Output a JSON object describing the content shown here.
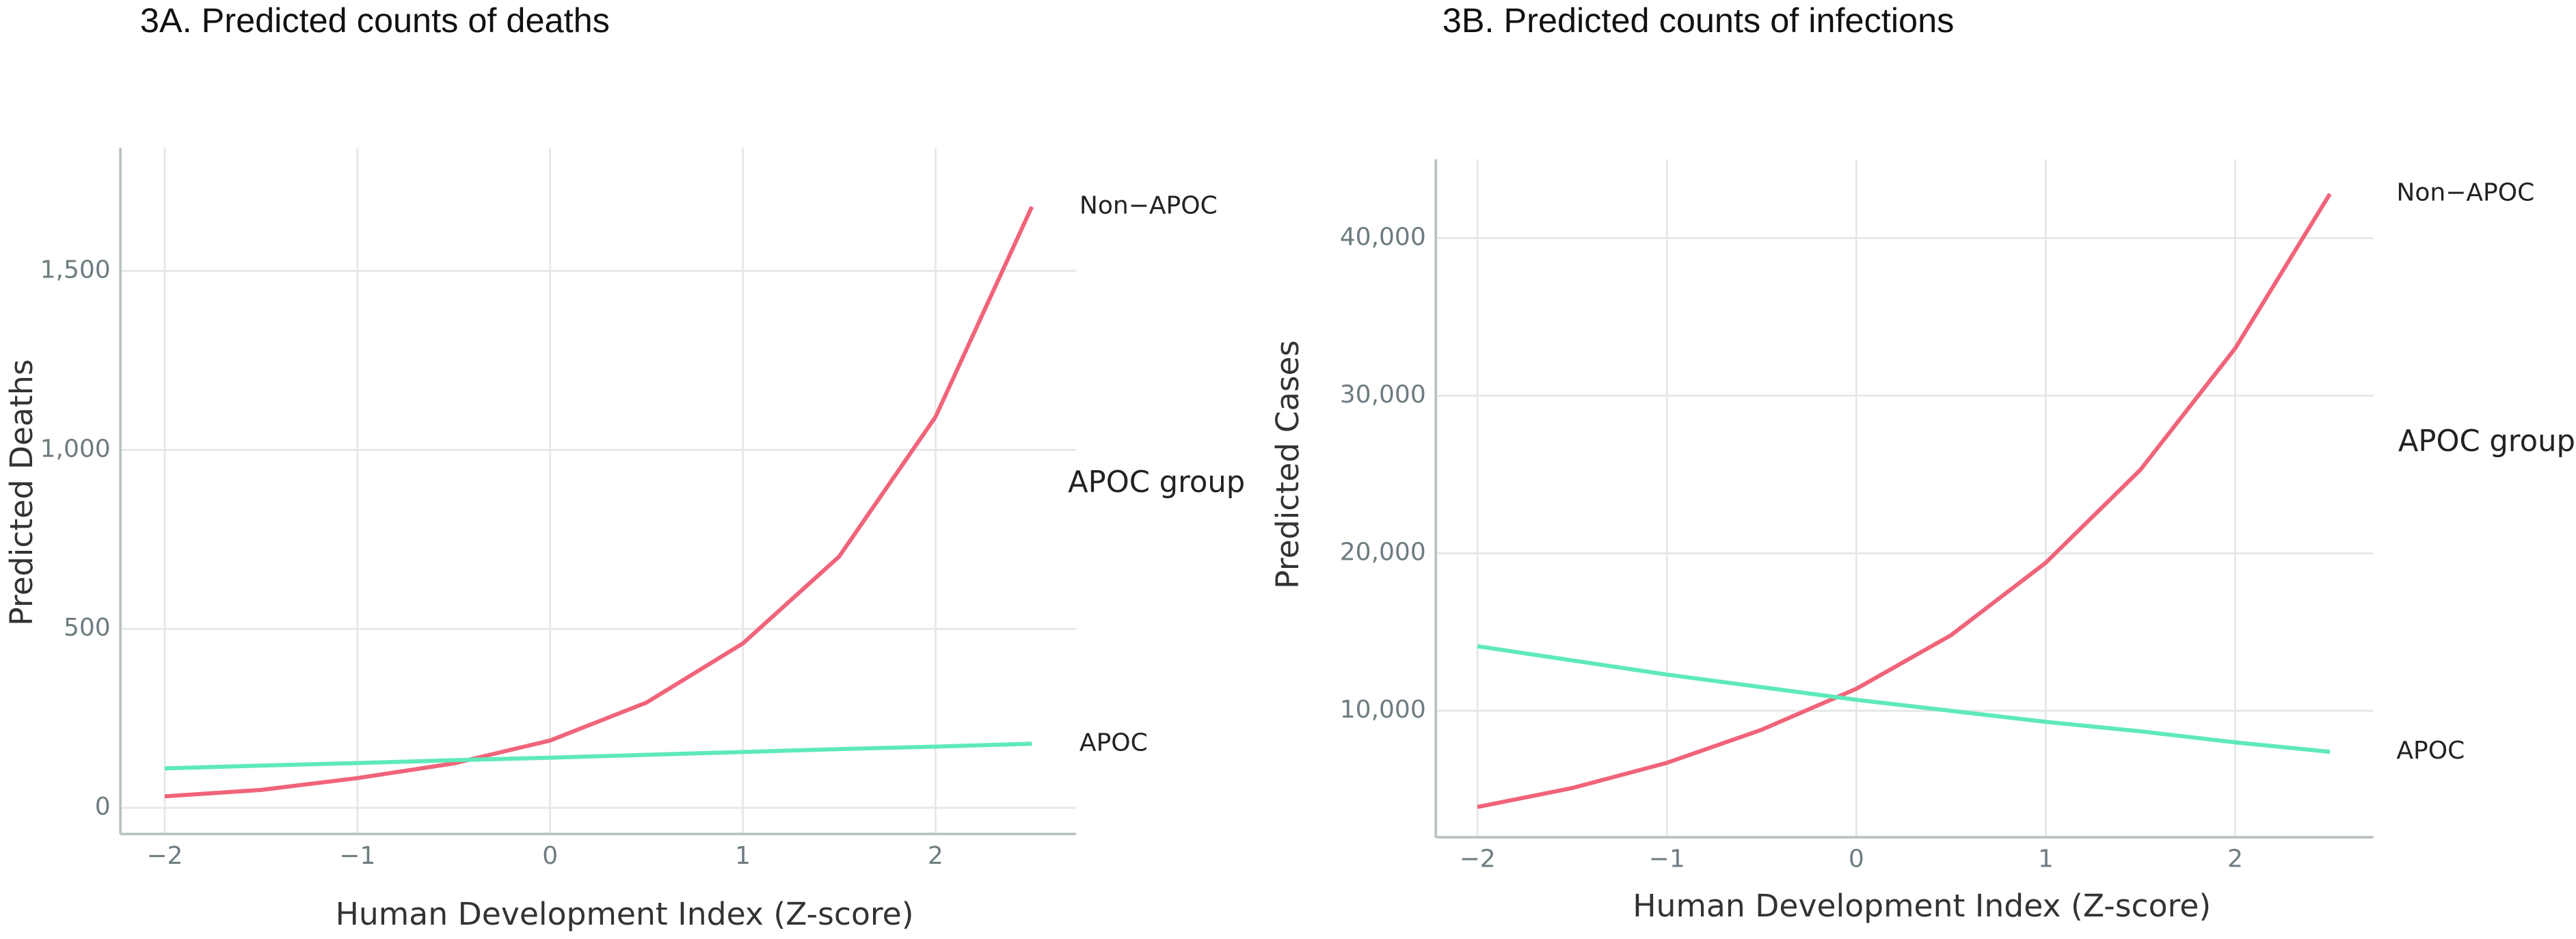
{
  "chart_data": [
    {
      "type": "line",
      "title": "3A. Predicted counts of deaths",
      "x_label": "Human Development Index (Z-score)",
      "y_label": "Predicted Deaths",
      "legend_title": "APOC group",
      "x": [
        -2,
        -1.5,
        -1,
        -0.5,
        0,
        0.5,
        1,
        1.5,
        2,
        2.5
      ],
      "series": [
        {
          "name": "Non−APOC",
          "color": "#f0647a",
          "values": [
            32,
            50,
            83,
            124,
            188,
            294,
            459,
            702,
            1092,
            1679
          ]
        },
        {
          "name": "APOC",
          "color": "#5eeab8",
          "values": [
            110,
            118,
            125,
            133,
            140,
            148,
            156,
            164,
            171,
            179
          ]
        }
      ],
      "xlim": [
        -2.23,
        2.73
      ],
      "ylim": [
        -73,
        1844
      ],
      "xticks": [
        {
          "value": -2,
          "label": "−2"
        },
        {
          "value": -1,
          "label": "−1"
        },
        0,
        1,
        2
      ],
      "yticks": [
        0,
        500,
        {
          "value": 1000,
          "label": "1,000"
        },
        {
          "value": 1500,
          "label": "1,500"
        }
      ],
      "grid": true
    },
    {
      "type": "line",
      "title": "3B. Predicted counts of infections",
      "x_label": "Human Development Index (Z-score)",
      "y_label": "Predicted Cases",
      "legend_title": "APOC group",
      "x": [
        -2,
        -1.5,
        -1,
        -0.5,
        0,
        0.5,
        1,
        1.5,
        2,
        2.5
      ],
      "series": [
        {
          "name": "Non−APOC",
          "color": "#f0647a",
          "values": [
            3900,
            5100,
            6700,
            8800,
            11400,
            14800,
            19400,
            25300,
            33000,
            42800
          ]
        },
        {
          "name": "APOC",
          "color": "#5eeab8",
          "values": [
            14100,
            13200,
            12300,
            11500,
            10700,
            10000,
            9300,
            8700,
            8000,
            7400
          ]
        }
      ],
      "xlim": [
        -2.22,
        2.73
      ],
      "ylim": [
        1980,
        45000
      ],
      "xticks": [
        {
          "value": -2,
          "label": "−2"
        },
        {
          "value": -1,
          "label": "−1"
        },
        0,
        1,
        2
      ],
      "yticks": [
        {
          "value": 10000,
          "label": "10,000"
        },
        {
          "value": 20000,
          "label": "20,000"
        },
        {
          "value": 30000,
          "label": "30,000"
        },
        {
          "value": 40000,
          "label": "40,000"
        }
      ],
      "grid": true
    }
  ]
}
